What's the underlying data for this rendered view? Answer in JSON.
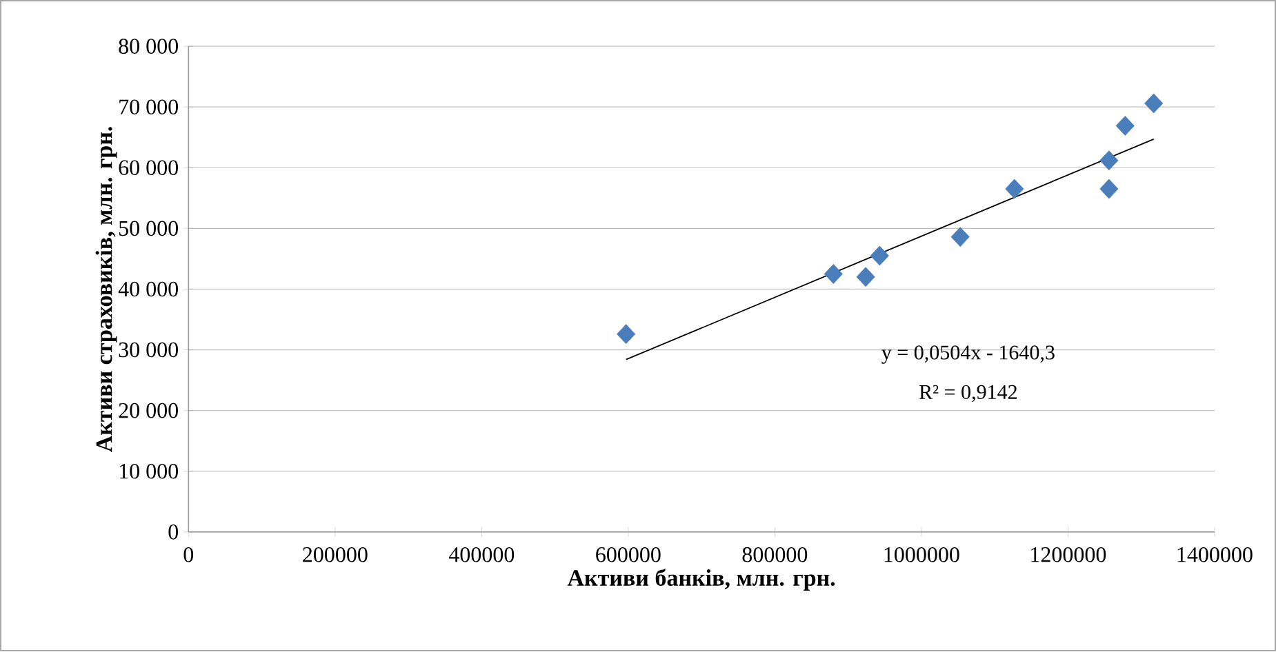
{
  "chart_data": {
    "type": "scatter",
    "xlabel": "Активи банків, млн. грн.",
    "ylabel": "Активи страховиків, млн. грн.",
    "series": [
      {
        "color": "#4a7ebb",
        "marker": "diamond",
        "x": [
          597000,
          880000,
          924000,
          943000,
          1053000,
          1127000,
          1256000,
          1256000,
          1278000,
          1317000
        ],
        "values": [
          32600,
          42500,
          42000,
          45500,
          48600,
          56500,
          61200,
          56500,
          66900,
          70600
        ]
      },
      {
        "type": "line",
        "color": "#000000",
        "x": [
          597000,
          1317000
        ],
        "values": [
          28400,
          64700
        ]
      }
    ],
    "annotations": [
      "y = 0,0504x  - 1640,3",
      "R² = 0,9142"
    ],
    "xlim": [
      0,
      1400000
    ],
    "xticks": [
      0,
      200000,
      400000,
      600000,
      800000,
      1000000,
      1200000,
      1400000
    ],
    "ylim": [
      0,
      80000
    ],
    "yticks": [
      {
        "value": 0,
        "label": "0"
      },
      {
        "value": 10000,
        "label": "10 000"
      },
      {
        "value": 20000,
        "label": "20 000"
      },
      {
        "value": 30000,
        "label": "30 000"
      },
      {
        "value": 40000,
        "label": "40 000"
      },
      {
        "value": 50000,
        "label": "50 000"
      },
      {
        "value": 60000,
        "label": "60 000"
      },
      {
        "value": 70000,
        "label": "70 000"
      },
      {
        "value": 80000,
        "label": "80 000"
      }
    ],
    "grid": "y"
  }
}
